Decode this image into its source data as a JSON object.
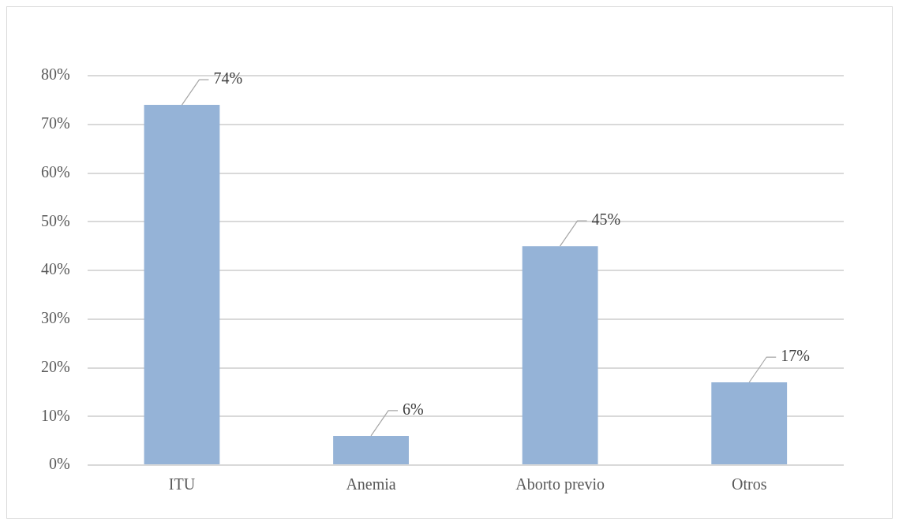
{
  "chart_data": {
    "type": "bar",
    "categories": [
      "ITU",
      "Anemia",
      "Aborto previo",
      "Otros"
    ],
    "values": [
      74,
      6,
      45,
      17
    ],
    "color": "#95b3d7",
    "value_labels": [
      "74%",
      "6%",
      "45%",
      "17%"
    ],
    "ylim": [
      0,
      80
    ],
    "yticks": [
      {
        "value": 0,
        "label": "0%"
      },
      {
        "value": 10,
        "label": "10%"
      },
      {
        "value": 20,
        "label": "20%"
      },
      {
        "value": 30,
        "label": "30%"
      },
      {
        "value": 40,
        "label": "40%"
      },
      {
        "value": 50,
        "label": "50%"
      },
      {
        "value": 60,
        "label": "60%"
      },
      {
        "value": 70,
        "label": "70%"
      },
      {
        "value": 80,
        "label": "80%"
      }
    ],
    "grid": "y"
  }
}
